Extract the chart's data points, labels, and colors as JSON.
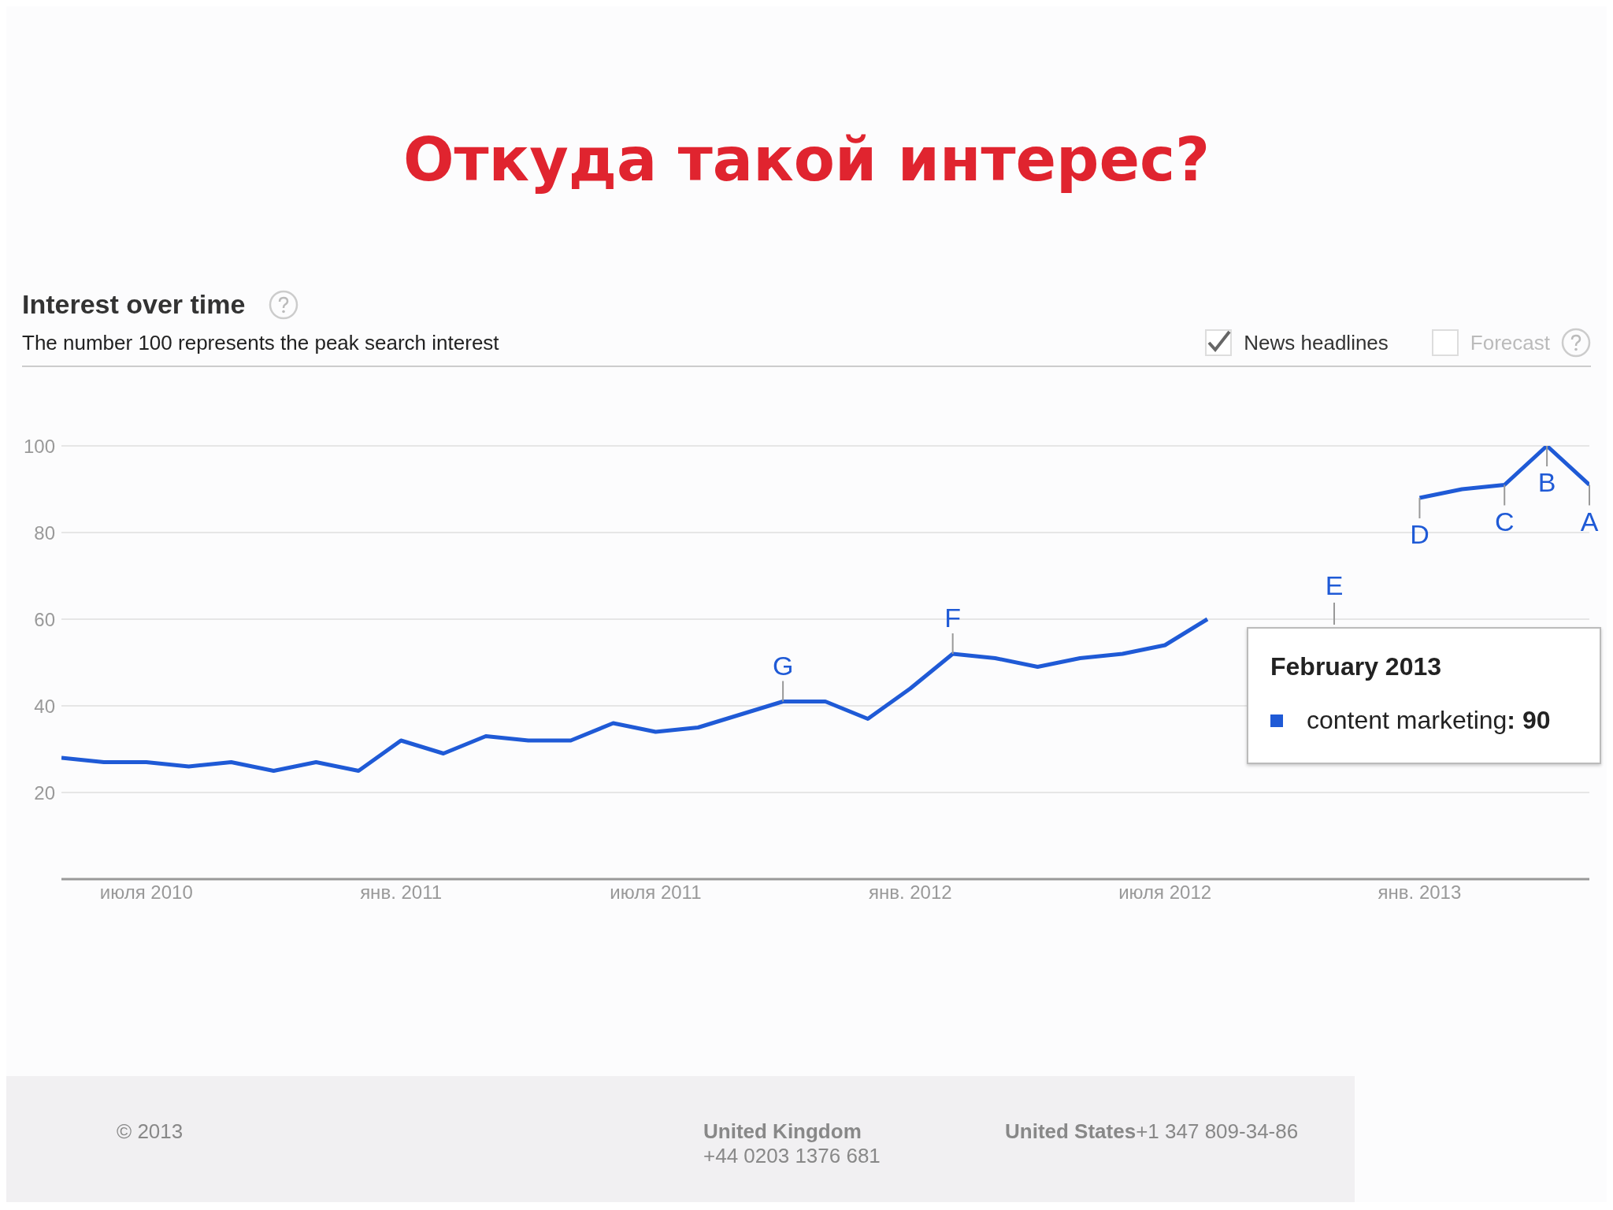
{
  "chart_data": {
    "type": "line",
    "title": "Откуда такой интерес?",
    "subtitle": "Interest over time",
    "x": [
      "2010-05",
      "2010-06",
      "2010-07",
      "2010-08",
      "2010-09",
      "2010-10",
      "2010-11",
      "2010-12",
      "2011-01",
      "2011-02",
      "2011-03",
      "2011-04",
      "2011-05",
      "2011-06",
      "2011-07",
      "2011-08",
      "2011-09",
      "2011-10",
      "2011-11",
      "2011-12",
      "2012-01",
      "2012-02",
      "2012-03",
      "2012-04",
      "2012-05",
      "2012-06",
      "2012-07",
      "2012-08",
      "2012-09",
      "2012-10",
      "2012-11",
      "2012-12",
      "2013-01",
      "2013-02",
      "2013-03",
      "2013-04",
      "2013-05"
    ],
    "series": [
      {
        "name": "content marketing",
        "color": "#1f5ad6",
        "values": [
          28,
          27,
          27,
          26,
          27,
          25,
          27,
          25,
          32,
          29,
          33,
          32,
          32,
          36,
          34,
          35,
          38,
          41,
          41,
          37,
          44,
          52,
          51,
          49,
          51,
          52,
          54,
          60,
          null,
          null,
          null,
          null,
          88,
          90,
          91,
          100,
          91
        ]
      }
    ],
    "xlim": [
      "2010-05",
      "2013-05"
    ],
    "xticks": [
      {
        "value": "2010-07",
        "label": "июля 2010"
      },
      {
        "value": "2011-01",
        "label": "янв. 2011"
      },
      {
        "value": "2011-07",
        "label": "июля 2011"
      },
      {
        "value": "2012-01",
        "label": "янв. 2012"
      },
      {
        "value": "2012-07",
        "label": "июля 2012"
      },
      {
        "value": "2013-01",
        "label": "янв. 2013"
      }
    ],
    "ylim": [
      0,
      100
    ],
    "yticks": [
      20,
      40,
      60,
      80,
      100
    ],
    "grid": "y",
    "legend": "right",
    "marker": "none",
    "line_style": "solid",
    "annotations": [
      "The number 100 represents the peak search interest",
      "News headlines",
      "Forecast",
      "© 2013",
      "United Kingdom",
      "+44 0203 1376 681",
      "United States",
      "+1 347 809-34-86",
      "February 2013",
      ": 90",
      "E",
      {
        "text": "G",
        "x": "2011-10",
        "y": 41
      },
      {
        "text": "F",
        "x": "2012-02",
        "y": 52
      },
      {
        "text": "D",
        "x": "2013-01",
        "y": 88
      },
      {
        "text": "C",
        "x": "2013-03",
        "y": 91
      },
      {
        "text": "B",
        "x": "2013-04",
        "y": 100
      },
      {
        "text": "A",
        "x": "2013-05",
        "y": 91
      }
    ]
  }
}
